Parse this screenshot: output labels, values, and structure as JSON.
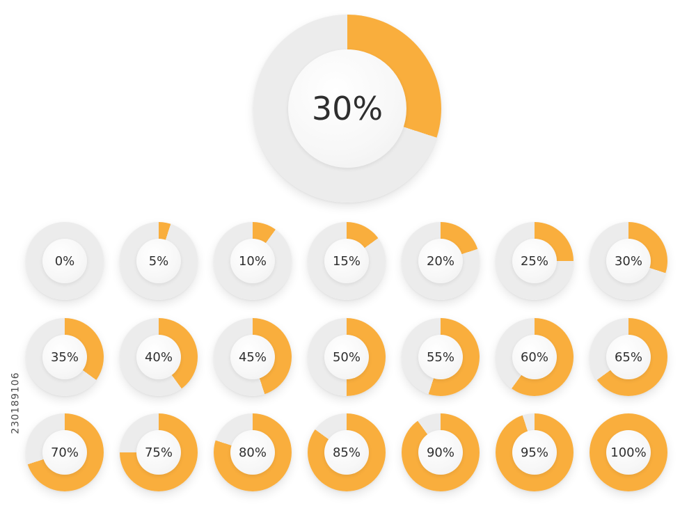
{
  "accent_color": "#f9ae3d",
  "track_color": "#ececec",
  "hero": {
    "label": "30%",
    "fraction": 0.3
  },
  "rings": [
    {
      "label": "0%",
      "fraction": 0.0
    },
    {
      "label": "5%",
      "fraction": 0.05
    },
    {
      "label": "10%",
      "fraction": 0.1
    },
    {
      "label": "15%",
      "fraction": 0.15
    },
    {
      "label": "20%",
      "fraction": 0.2
    },
    {
      "label": "25%",
      "fraction": 0.25
    },
    {
      "label": "30%",
      "fraction": 0.3
    },
    {
      "label": "35%",
      "fraction": 0.35
    },
    {
      "label": "40%",
      "fraction": 0.4
    },
    {
      "label": "45%",
      "fraction": 0.45
    },
    {
      "label": "50%",
      "fraction": 0.5
    },
    {
      "label": "55%",
      "fraction": 0.55
    },
    {
      "label": "60%",
      "fraction": 0.6
    },
    {
      "label": "65%",
      "fraction": 0.65
    },
    {
      "label": "70%",
      "fraction": 0.7
    },
    {
      "label": "75%",
      "fraction": 0.75
    },
    {
      "label": "80%",
      "fraction": 0.8
    },
    {
      "label": "85%",
      "fraction": 0.85
    },
    {
      "label": "90%",
      "fraction": 0.9
    },
    {
      "label": "95%",
      "fraction": 0.95
    },
    {
      "label": "100%",
      "fraction": 1.0
    }
  ],
  "stock_id": "230189106"
}
